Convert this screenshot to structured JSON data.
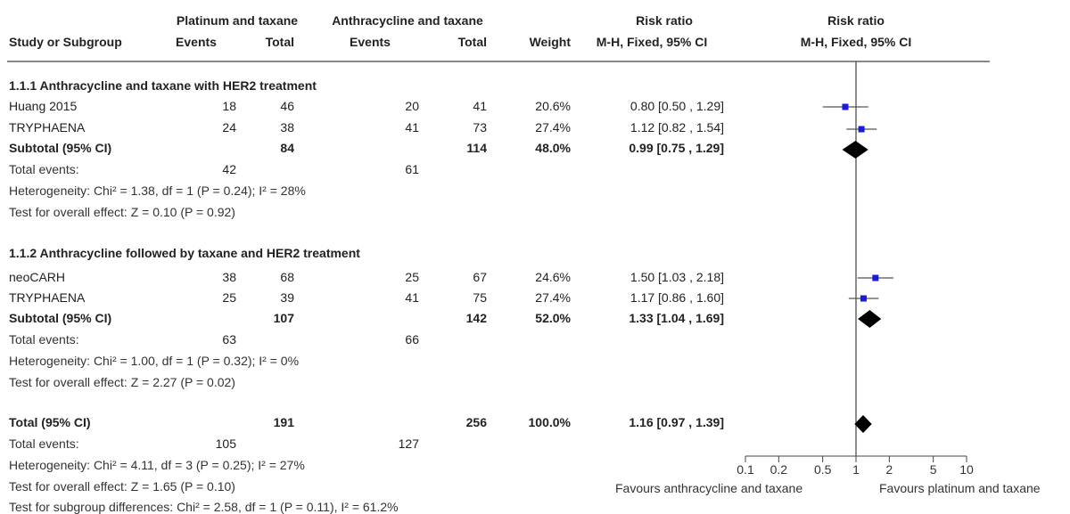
{
  "header": {
    "group1": "Platinum and taxane",
    "group2": "Anthracycline and taxane",
    "rr_numeric_title": "Risk ratio",
    "rr_plot_title": "Risk ratio",
    "study_col": "Study or Subgroup",
    "events1": "Events",
    "total1": "Total",
    "events2": "Events",
    "total2": "Total",
    "weight": "Weight",
    "method_numeric": "M-H, Fixed, 95% CI",
    "method_plot": "M-H, Fixed, 95% CI"
  },
  "subgroup1": {
    "title": "1.1.1 Anthracycline and taxane with HER2 treatment",
    "studies": [
      {
        "name": "Huang 2015",
        "e1": "18",
        "t1": "46",
        "e2": "20",
        "t2": "41",
        "weight": "20.6%",
        "ci": "0.80 [0.50 , 1.29]"
      },
      {
        "name": "TRYPHAENA",
        "e1": "24",
        "t1": "38",
        "e2": "41",
        "t2": "73",
        "weight": "27.4%",
        "ci": "1.12 [0.82 , 1.54]"
      }
    ],
    "subtotal": {
      "label": "Subtotal (95% CI)",
      "t1": "84",
      "t2": "114",
      "weight": "48.0%",
      "ci": "0.99 [0.75 , 1.29]"
    },
    "events": {
      "label": "Total events:",
      "e1": "42",
      "e2": "61"
    },
    "heterogeneity": "Heterogeneity: Chi² = 1.38, df = 1 (P = 0.24); I² = 28%",
    "overall": "Test for overall effect: Z = 0.10 (P = 0.92)"
  },
  "subgroup2": {
    "title": "1.1.2 Anthracycline followed by taxane and HER2 treatment",
    "studies": [
      {
        "name": "neoCARH",
        "e1": "38",
        "t1": "68",
        "e2": "25",
        "t2": "67",
        "weight": "24.6%",
        "ci": "1.50 [1.03 , 2.18]"
      },
      {
        "name": "TRYPHAENA",
        "e1": "25",
        "t1": "39",
        "e2": "41",
        "t2": "75",
        "weight": "27.4%",
        "ci": "1.17 [0.86 , 1.60]"
      }
    ],
    "subtotal": {
      "label": "Subtotal (95% CI)",
      "t1": "107",
      "t2": "142",
      "weight": "52.0%",
      "ci": "1.33 [1.04 , 1.69]"
    },
    "events": {
      "label": "Total events:",
      "e1": "63",
      "e2": "66"
    },
    "heterogeneity": "Heterogeneity: Chi² = 1.00, df = 1 (P = 0.32); I² = 0%",
    "overall": "Test for overall effect: Z = 2.27 (P = 0.02)"
  },
  "total": {
    "label": "Total (95% CI)",
    "t1": "191",
    "t2": "256",
    "weight": "100.0%",
    "ci": "1.16 [0.97 , 1.39]",
    "events": {
      "label": "Total events:",
      "e1": "105",
      "e2": "127"
    },
    "heterogeneity": "Heterogeneity: Chi² = 4.11, df = 3 (P = 0.25); I² = 27%",
    "overall": "Test for overall effect: Z = 1.65 (P = 0.10)",
    "subgroup_diff": "Test for subgroup differences: Chi² = 2.58, df = 1 (P = 0.11), I² = 61.2%"
  },
  "axis": {
    "favours_left": "Favours anthracycline and taxane",
    "favours_right": "Favours platinum and taxane"
  },
  "colors": {
    "point": "#1a1adf",
    "line": "#555555",
    "diamond": "#000000"
  },
  "chart_data": {
    "type": "scatter",
    "scale": "log",
    "xlim": [
      0.1,
      10
    ],
    "ticks": [
      0.1,
      0.2,
      0.5,
      1,
      2,
      5,
      10
    ],
    "tick_labels": [
      "0.1",
      "0.2",
      "0.5",
      "1",
      "2",
      "5",
      "10"
    ],
    "studies": [
      {
        "name": "Huang 2015",
        "rr": 0.8,
        "lo": 0.5,
        "hi": 1.29,
        "weight": 20.6
      },
      {
        "name": "TRYPHAENA",
        "rr": 1.12,
        "lo": 0.82,
        "hi": 1.54,
        "weight": 27.4
      },
      {
        "name": "neoCARH",
        "rr": 1.5,
        "lo": 1.03,
        "hi": 2.18,
        "weight": 24.6
      },
      {
        "name": "TRYPHAENA",
        "rr": 1.17,
        "lo": 0.86,
        "hi": 1.6,
        "weight": 27.4
      }
    ],
    "diamonds": [
      {
        "name": "Subtotal 1.1.1",
        "rr": 0.99,
        "lo": 0.75,
        "hi": 1.29
      },
      {
        "name": "Subtotal 1.1.2",
        "rr": 1.33,
        "lo": 1.04,
        "hi": 1.69
      },
      {
        "name": "Total",
        "rr": 1.16,
        "lo": 0.97,
        "hi": 1.39
      }
    ]
  }
}
